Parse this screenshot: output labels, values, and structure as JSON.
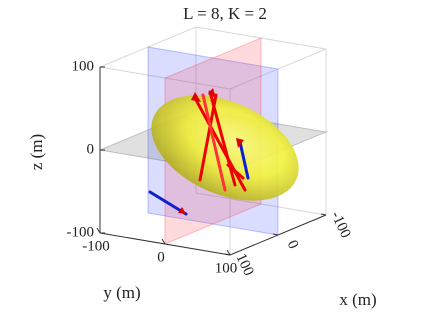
{
  "chart_data": {
    "type": "surface3d",
    "title": "L = 8, K = 2",
    "xlabel": "x (m)",
    "ylabel": "y (m)",
    "zlabel": "z (m)",
    "xlim": [
      -100,
      100
    ],
    "ylim": [
      -100,
      100
    ],
    "zlim": [
      -100,
      100
    ],
    "xticks": [
      -100,
      0,
      100
    ],
    "yticks": [
      -100,
      0,
      100
    ],
    "zticks": [
      -100,
      0,
      100
    ]
  }
}
